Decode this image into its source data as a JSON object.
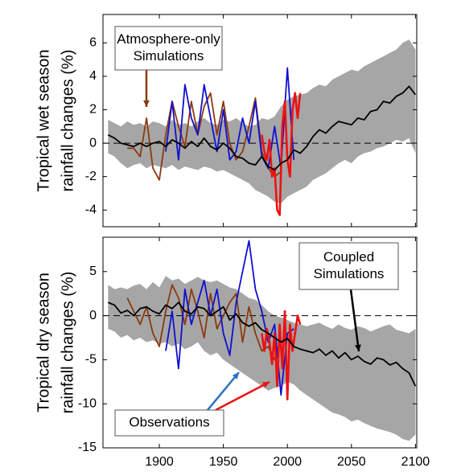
{
  "chart_data": [
    {
      "type": "line",
      "ylabel": [
        "Tropical wet season",
        "rainfall changes (%)"
      ],
      "xlim": [
        1856,
        2101
      ],
      "ylim": [
        -5,
        7.7
      ],
      "xticks": [
        1900,
        1950,
        2000,
        2050,
        2100
      ],
      "yticks": [
        -4,
        -2,
        0,
        2,
        4,
        6
      ],
      "show_xtick_labels": false,
      "zero_line": true,
      "band": {
        "color": "#a6a6a6",
        "x": [
          1860,
          1865,
          1870,
          1875,
          1880,
          1885,
          1890,
          1895,
          1900,
          1905,
          1910,
          1915,
          1920,
          1925,
          1930,
          1935,
          1940,
          1945,
          1950,
          1955,
          1960,
          1965,
          1970,
          1975,
          1980,
          1985,
          1990,
          1995,
          2000,
          2005,
          2010,
          2015,
          2020,
          2025,
          2030,
          2035,
          2040,
          2045,
          2050,
          2055,
          2060,
          2065,
          2070,
          2075,
          2080,
          2085,
          2090,
          2095,
          2100
        ],
        "upper": [
          1.4,
          1.2,
          1.0,
          1.3,
          1.1,
          1.2,
          1.0,
          1.3,
          1.2,
          1.0,
          1.4,
          1.1,
          1.2,
          1.0,
          1.3,
          1.5,
          1.2,
          1.1,
          1.4,
          1.3,
          1.5,
          1.2,
          1.0,
          1.1,
          1.5,
          1.4,
          1.6,
          2.2,
          2.6,
          2.8,
          2.9,
          3.0,
          3.3,
          3.5,
          3.4,
          3.8,
          4.0,
          4.2,
          4.4,
          4.3,
          4.6,
          4.8,
          5.0,
          5.2,
          5.4,
          5.6,
          6.0,
          6.2,
          5.6
        ],
        "lower": [
          -0.6,
          -0.8,
          -1.2,
          -1.5,
          -1.3,
          -1.2,
          -1.5,
          -1.3,
          -1.4,
          -1.5,
          -1.3,
          -1.6,
          -1.4,
          -1.5,
          -1.6,
          -1.4,
          -1.5,
          -1.7,
          -1.6,
          -1.8,
          -2.0,
          -2.2,
          -2.4,
          -2.8,
          -3.0,
          -3.2,
          -3.5,
          -3.6,
          -3.2,
          -3.0,
          -2.8,
          -2.6,
          -2.2,
          -2.0,
          -1.8,
          -1.5,
          -1.2,
          -1.0,
          -1.2,
          -0.8,
          -0.6,
          -0.5,
          -0.3,
          -0.2,
          0.0,
          0.2,
          0.1,
          0.3,
          -0.6
        ]
      },
      "series": [
        {
          "color": "#8b3a0f",
          "x": [
            1875,
            1880,
            1885,
            1890,
            1895,
            1900,
            1905,
            1910,
            1915,
            1920,
            1925,
            1930,
            1935,
            1940,
            1945,
            1950,
            1955,
            1960,
            1965,
            1970,
            1975,
            1980,
            1985,
            1990,
            1995
          ],
          "values": [
            -0.3,
            -0.3,
            -0.8,
            1.5,
            -1.5,
            -2.2,
            0.5,
            2.5,
            1.0,
            -0.2,
            2.5,
            0.5,
            2.2,
            3.0,
            0.5,
            2.5,
            0.0,
            -1.0,
            -0.5,
            1.0,
            2.7,
            -0.5,
            -1.5,
            -2.0,
            -1.7
          ]
        },
        {
          "color": "#1010d0",
          "x": [
            1905,
            1910,
            1915,
            1920,
            1925,
            1930,
            1935,
            1940,
            1945,
            1950,
            1955,
            1960,
            1965,
            1970,
            1975,
            1980,
            1985,
            1990,
            1995,
            2000,
            2005
          ],
          "values": [
            -0.5,
            2.5,
            -1.0,
            3.5,
            1.5,
            0.5,
            3.5,
            1.5,
            -0.5,
            2.0,
            -1.0,
            -0.5,
            1.5,
            0.0,
            2.5,
            -0.8,
            -1.5,
            1.0,
            -1.5,
            4.5,
            -1.0
          ]
        },
        {
          "color": "#ee1111",
          "x": [
            1980,
            1982,
            1984,
            1986,
            1988,
            1990,
            1992,
            1994,
            1996,
            1998,
            2000,
            2002,
            2004,
            2006,
            2008,
            2010
          ],
          "values": [
            0.5,
            -0.5,
            -1.0,
            0.2,
            -2.0,
            -1.5,
            -4.0,
            -4.3,
            1.0,
            2.5,
            -1.0,
            -2.0,
            2.0,
            3.0,
            1.5,
            3.0
          ]
        },
        {
          "color": "#000000",
          "x": [
            1860,
            1865,
            1870,
            1875,
            1880,
            1885,
            1890,
            1895,
            1900,
            1905,
            1910,
            1915,
            1920,
            1925,
            1930,
            1935,
            1940,
            1945,
            1950,
            1955,
            1960,
            1965,
            1970,
            1975,
            1980,
            1985,
            1990,
            1995,
            2000,
            2005,
            2010,
            2015,
            2020,
            2025,
            2030,
            2035,
            2040,
            2045,
            2050,
            2055,
            2060,
            2065,
            2070,
            2075,
            2080,
            2085,
            2090,
            2095,
            2100
          ],
          "values": [
            0.5,
            0.3,
            0.0,
            -0.1,
            -0.2,
            0.0,
            -0.2,
            0.0,
            0.1,
            -0.2,
            0.2,
            0.0,
            -0.3,
            0.1,
            -0.2,
            0.3,
            -0.2,
            -0.4,
            0.0,
            -0.3,
            -0.8,
            -0.9,
            -1.2,
            -1.3,
            -0.8,
            -1.4,
            -1.6,
            -1.2,
            -1.0,
            -0.4,
            -0.6,
            -0.2,
            0.4,
            0.8,
            0.6,
            1.0,
            1.3,
            1.2,
            1.1,
            1.5,
            1.4,
            1.9,
            2.0,
            2.5,
            2.4,
            2.8,
            3.0,
            3.4,
            2.9
          ]
        }
      ],
      "annotations": [
        {
          "lines": [
            "Atmosphere-only",
            "Simulations"
          ],
          "arrow_color": "#8b3a0f"
        }
      ]
    },
    {
      "type": "line",
      "ylabel": [
        "Tropical dry season",
        "rainfall changes (%)"
      ],
      "xlim": [
        1856,
        2101
      ],
      "ylim": [
        -15,
        8.9
      ],
      "xticks": [
        1900,
        1950,
        2000,
        2050,
        2100
      ],
      "yticks": [
        -15,
        -10,
        -5,
        0,
        5
      ],
      "show_xtick_labels": true,
      "zero_line": true,
      "band": {
        "color": "#a6a6a6",
        "x": [
          1860,
          1865,
          1870,
          1875,
          1880,
          1885,
          1890,
          1895,
          1900,
          1905,
          1910,
          1915,
          1920,
          1925,
          1930,
          1935,
          1940,
          1945,
          1950,
          1955,
          1960,
          1965,
          1970,
          1975,
          1980,
          1985,
          1990,
          1995,
          2000,
          2005,
          2010,
          2015,
          2020,
          2025,
          2030,
          2035,
          2040,
          2045,
          2050,
          2055,
          2060,
          2065,
          2070,
          2075,
          2080,
          2085,
          2090,
          2095,
          2100
        ],
        "upper": [
          3.5,
          3.0,
          3.2,
          3.0,
          3.4,
          3.6,
          3.0,
          3.8,
          3.2,
          4.5,
          4.0,
          4.2,
          3.6,
          4.0,
          4.4,
          4.0,
          3.8,
          4.0,
          3.6,
          3.2,
          3.0,
          2.5,
          2.0,
          1.8,
          1.2,
          0.5,
          0.0,
          -0.2,
          -0.5,
          -0.8,
          -1.0,
          -1.2,
          -1.0,
          -0.8,
          -1.2,
          -1.5,
          -1.0,
          -1.4,
          -1.6,
          -1.2,
          -1.4,
          -1.8,
          -1.5,
          -1.2,
          -1.0,
          -1.6,
          -1.8,
          -2.0,
          -1.5
        ],
        "lower": [
          -1.5,
          -1.8,
          -2.5,
          -2.2,
          -2.8,
          -2.5,
          -3.0,
          -2.8,
          -3.2,
          -3.0,
          -3.5,
          -3.2,
          -3.8,
          -3.5,
          -3.0,
          -4.0,
          -4.5,
          -4.2,
          -5.0,
          -5.5,
          -6.0,
          -6.5,
          -7.0,
          -7.5,
          -8.0,
          -8.5,
          -8.2,
          -8.0,
          -7.5,
          -7.8,
          -8.5,
          -9.0,
          -9.5,
          -10.0,
          -10.5,
          -11.0,
          -11.2,
          -11.5,
          -12.0,
          -11.8,
          -12.2,
          -12.5,
          -12.8,
          -13.0,
          -13.2,
          -13.5,
          -14.0,
          -14.2,
          -13.5
        ]
      },
      "series": [
        {
          "color": "#8b3a0f",
          "x": [
            1875,
            1880,
            1885,
            1890,
            1895,
            1900,
            1905,
            1910,
            1915,
            1920,
            1925,
            1930,
            1935,
            1940,
            1945,
            1950,
            1955,
            1960,
            1965,
            1970,
            1975,
            1980,
            1985,
            1990,
            1995
          ],
          "values": [
            2.0,
            0.5,
            -1.0,
            1.0,
            -2.0,
            -3.5,
            0.5,
            3.5,
            2.0,
            -1.0,
            3.0,
            0.5,
            -2.5,
            2.5,
            -1.5,
            0.0,
            1.5,
            2.5,
            -3.0,
            1.0,
            -2.0,
            -4.0,
            -3.5,
            -5.0,
            -2.5
          ]
        },
        {
          "color": "#1010d0",
          "x": [
            1905,
            1910,
            1915,
            1920,
            1925,
            1930,
            1935,
            1940,
            1945,
            1950,
            1955,
            1960,
            1965,
            1970,
            1975,
            1980,
            1985,
            1990,
            1995,
            2000,
            2005
          ],
          "values": [
            -4.0,
            0.5,
            -6.0,
            3.0,
            -1.0,
            1.5,
            4.0,
            0.0,
            3.0,
            -2.0,
            -4.5,
            1.5,
            5.0,
            8.5,
            3.0,
            0.5,
            -3.0,
            -1.0,
            -9.0,
            -2.0,
            -1.5
          ]
        },
        {
          "color": "#ee1111",
          "x": [
            1980,
            1982,
            1984,
            1986,
            1988,
            1990,
            1992,
            1994,
            1996,
            1998,
            2000,
            2002,
            2004,
            2006,
            2008,
            2010
          ],
          "values": [
            -2.0,
            -4.0,
            -1.5,
            -3.0,
            -5.5,
            -2.0,
            -8.0,
            -1.0,
            -6.0,
            0.5,
            -9.5,
            -1.0,
            -4.0,
            -2.0,
            0.0,
            -1.0
          ]
        },
        {
          "color": "#000000",
          "x": [
            1860,
            1865,
            1870,
            1875,
            1880,
            1885,
            1890,
            1895,
            1900,
            1905,
            1910,
            1915,
            1920,
            1925,
            1930,
            1935,
            1940,
            1945,
            1950,
            1955,
            1960,
            1965,
            1970,
            1975,
            1980,
            1985,
            1990,
            1995,
            2000,
            2005,
            2010,
            2015,
            2020,
            2025,
            2030,
            2035,
            2040,
            2045,
            2050,
            2055,
            2060,
            2065,
            2070,
            2075,
            2080,
            2085,
            2090,
            2095,
            2100
          ],
          "values": [
            1.5,
            1.2,
            0.3,
            0.6,
            0.0,
            0.8,
            1.0,
            0.5,
            0.2,
            1.2,
            0.8,
            1.5,
            0.5,
            0.2,
            1.0,
            0.8,
            0.0,
            0.5,
            1.0,
            -0.5,
            0.2,
            -0.8,
            -1.2,
            -0.8,
            -1.6,
            -2.0,
            -2.5,
            -3.0,
            -2.6,
            -3.5,
            -3.8,
            -4.0,
            -4.2,
            -3.8,
            -4.5,
            -4.0,
            -4.8,
            -4.2,
            -5.0,
            -4.6,
            -5.2,
            -5.5,
            -4.8,
            -5.0,
            -5.6,
            -5.3,
            -6.0,
            -6.5,
            -8.0
          ]
        }
      ],
      "annotations": [
        {
          "lines": [
            "Coupled",
            "Simulations"
          ],
          "arrow_color": "#000000"
        },
        {
          "lines": [
            "Observations"
          ],
          "arrow_color": "#2a6fc0",
          "arrow_color_2": "#ee1111"
        }
      ]
    }
  ]
}
